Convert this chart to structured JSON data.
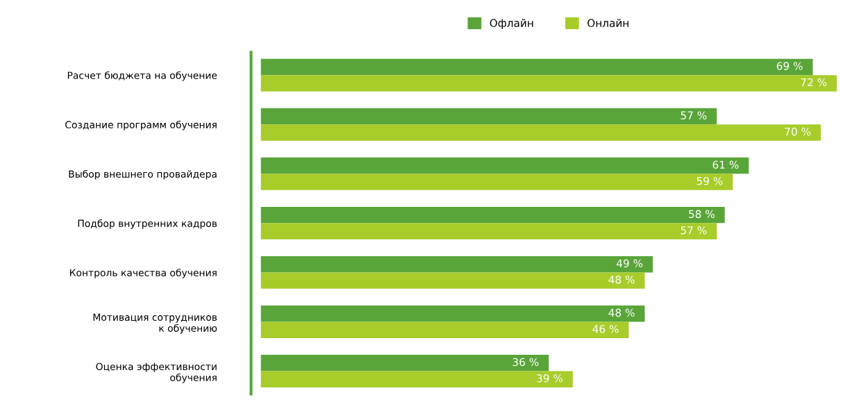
{
  "chart_data": {
    "type": "bar",
    "orientation": "horizontal",
    "categories": [
      "Расчет бюджета на обучение",
      "Создание программ обучения",
      "Выбор внешнего провайдера",
      "Подбор внутренних кадров",
      "Контроль качества обучения",
      "Мотивация сотрудников\nк обучению",
      "Оценка эффективности\nобучения"
    ],
    "series": [
      {
        "name": "Офлайн",
        "color": "#5aa53a",
        "values": [
          69,
          57,
          61,
          58,
          49,
          48,
          36
        ],
        "value_labels": [
          "69 %",
          "57 %",
          "61 %",
          "58 %",
          "49 %",
          "48 %",
          "36 %"
        ]
      },
      {
        "name": "Онлайн",
        "color": "#a8cc2a",
        "values": [
          72,
          70,
          59,
          57,
          48,
          46,
          39
        ],
        "value_labels": [
          "72 %",
          "70 %",
          "59 %",
          "57 %",
          "48 %",
          "46 %",
          "39 %"
        ]
      }
    ],
    "legend": "top",
    "grid": false,
    "tick_labels": "y"
  }
}
